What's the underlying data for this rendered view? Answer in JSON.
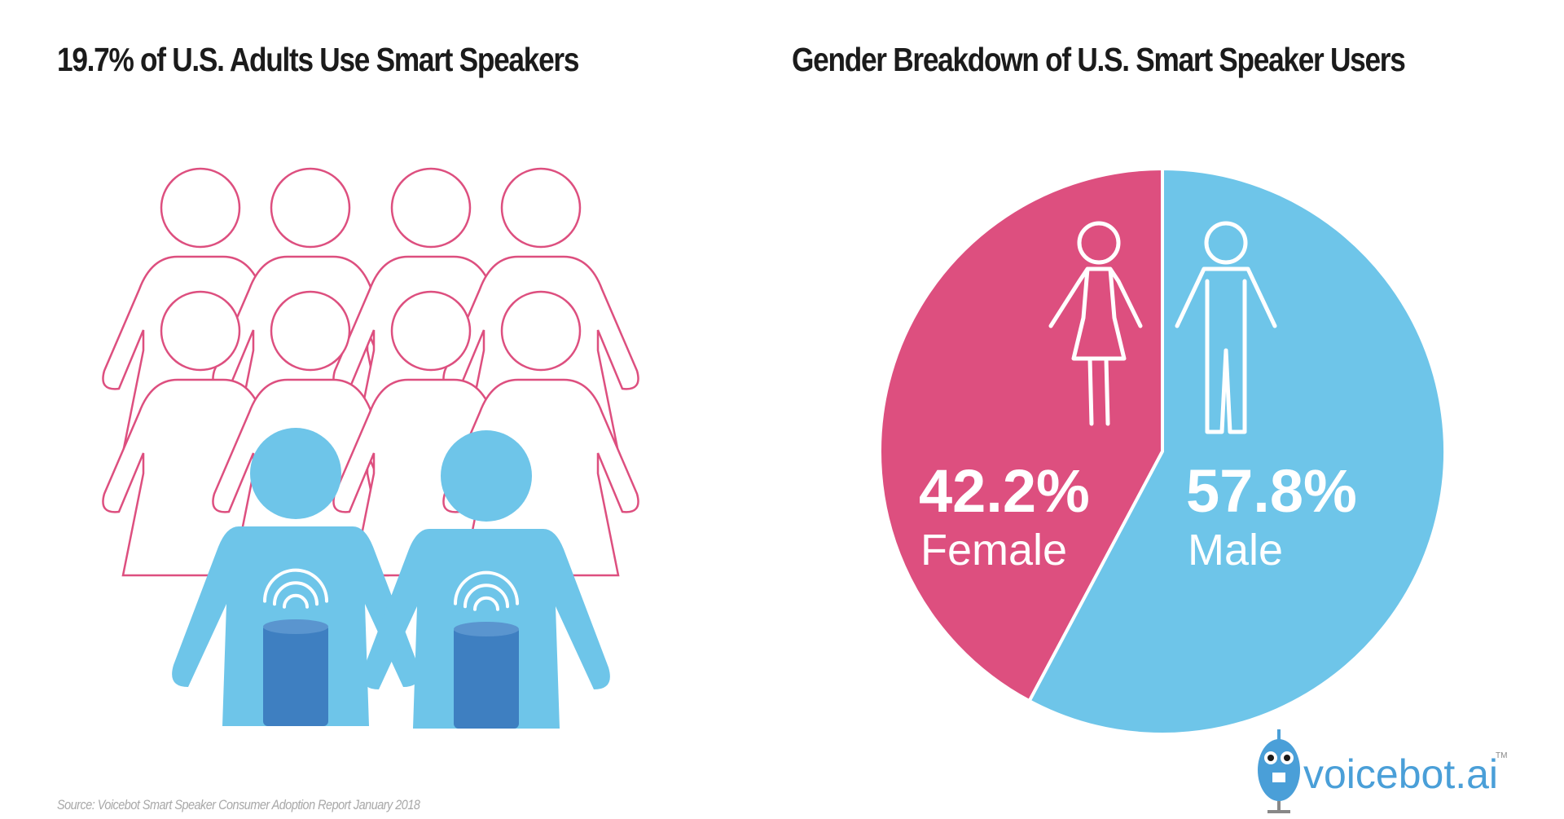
{
  "left_panel": {
    "title": "19.7% of U.S. Adults Use Smart Speakers",
    "total_people_icons": 10,
    "highlighted_people_icons": 2,
    "colors": {
      "outline": "#dd4f7f",
      "highlight": "#6ec5e9",
      "speaker": "#3e7fc1"
    }
  },
  "chart_data": {
    "type": "pie",
    "title": "Gender Breakdown of U.S. Smart Speaker Users",
    "slices": [
      {
        "label": "Female",
        "value": 42.2,
        "value_label": "42.2%",
        "color": "#dd4f7f",
        "icon": "female-person-icon"
      },
      {
        "label": "Male",
        "value": 57.8,
        "value_label": "57.8%",
        "color": "#6ec5e9",
        "icon": "male-person-icon"
      }
    ]
  },
  "source": "Source: Voicebot Smart Speaker Consumer Adoption Report January 2018",
  "logo": {
    "text": "voicebot.ai",
    "mark": "TM"
  }
}
